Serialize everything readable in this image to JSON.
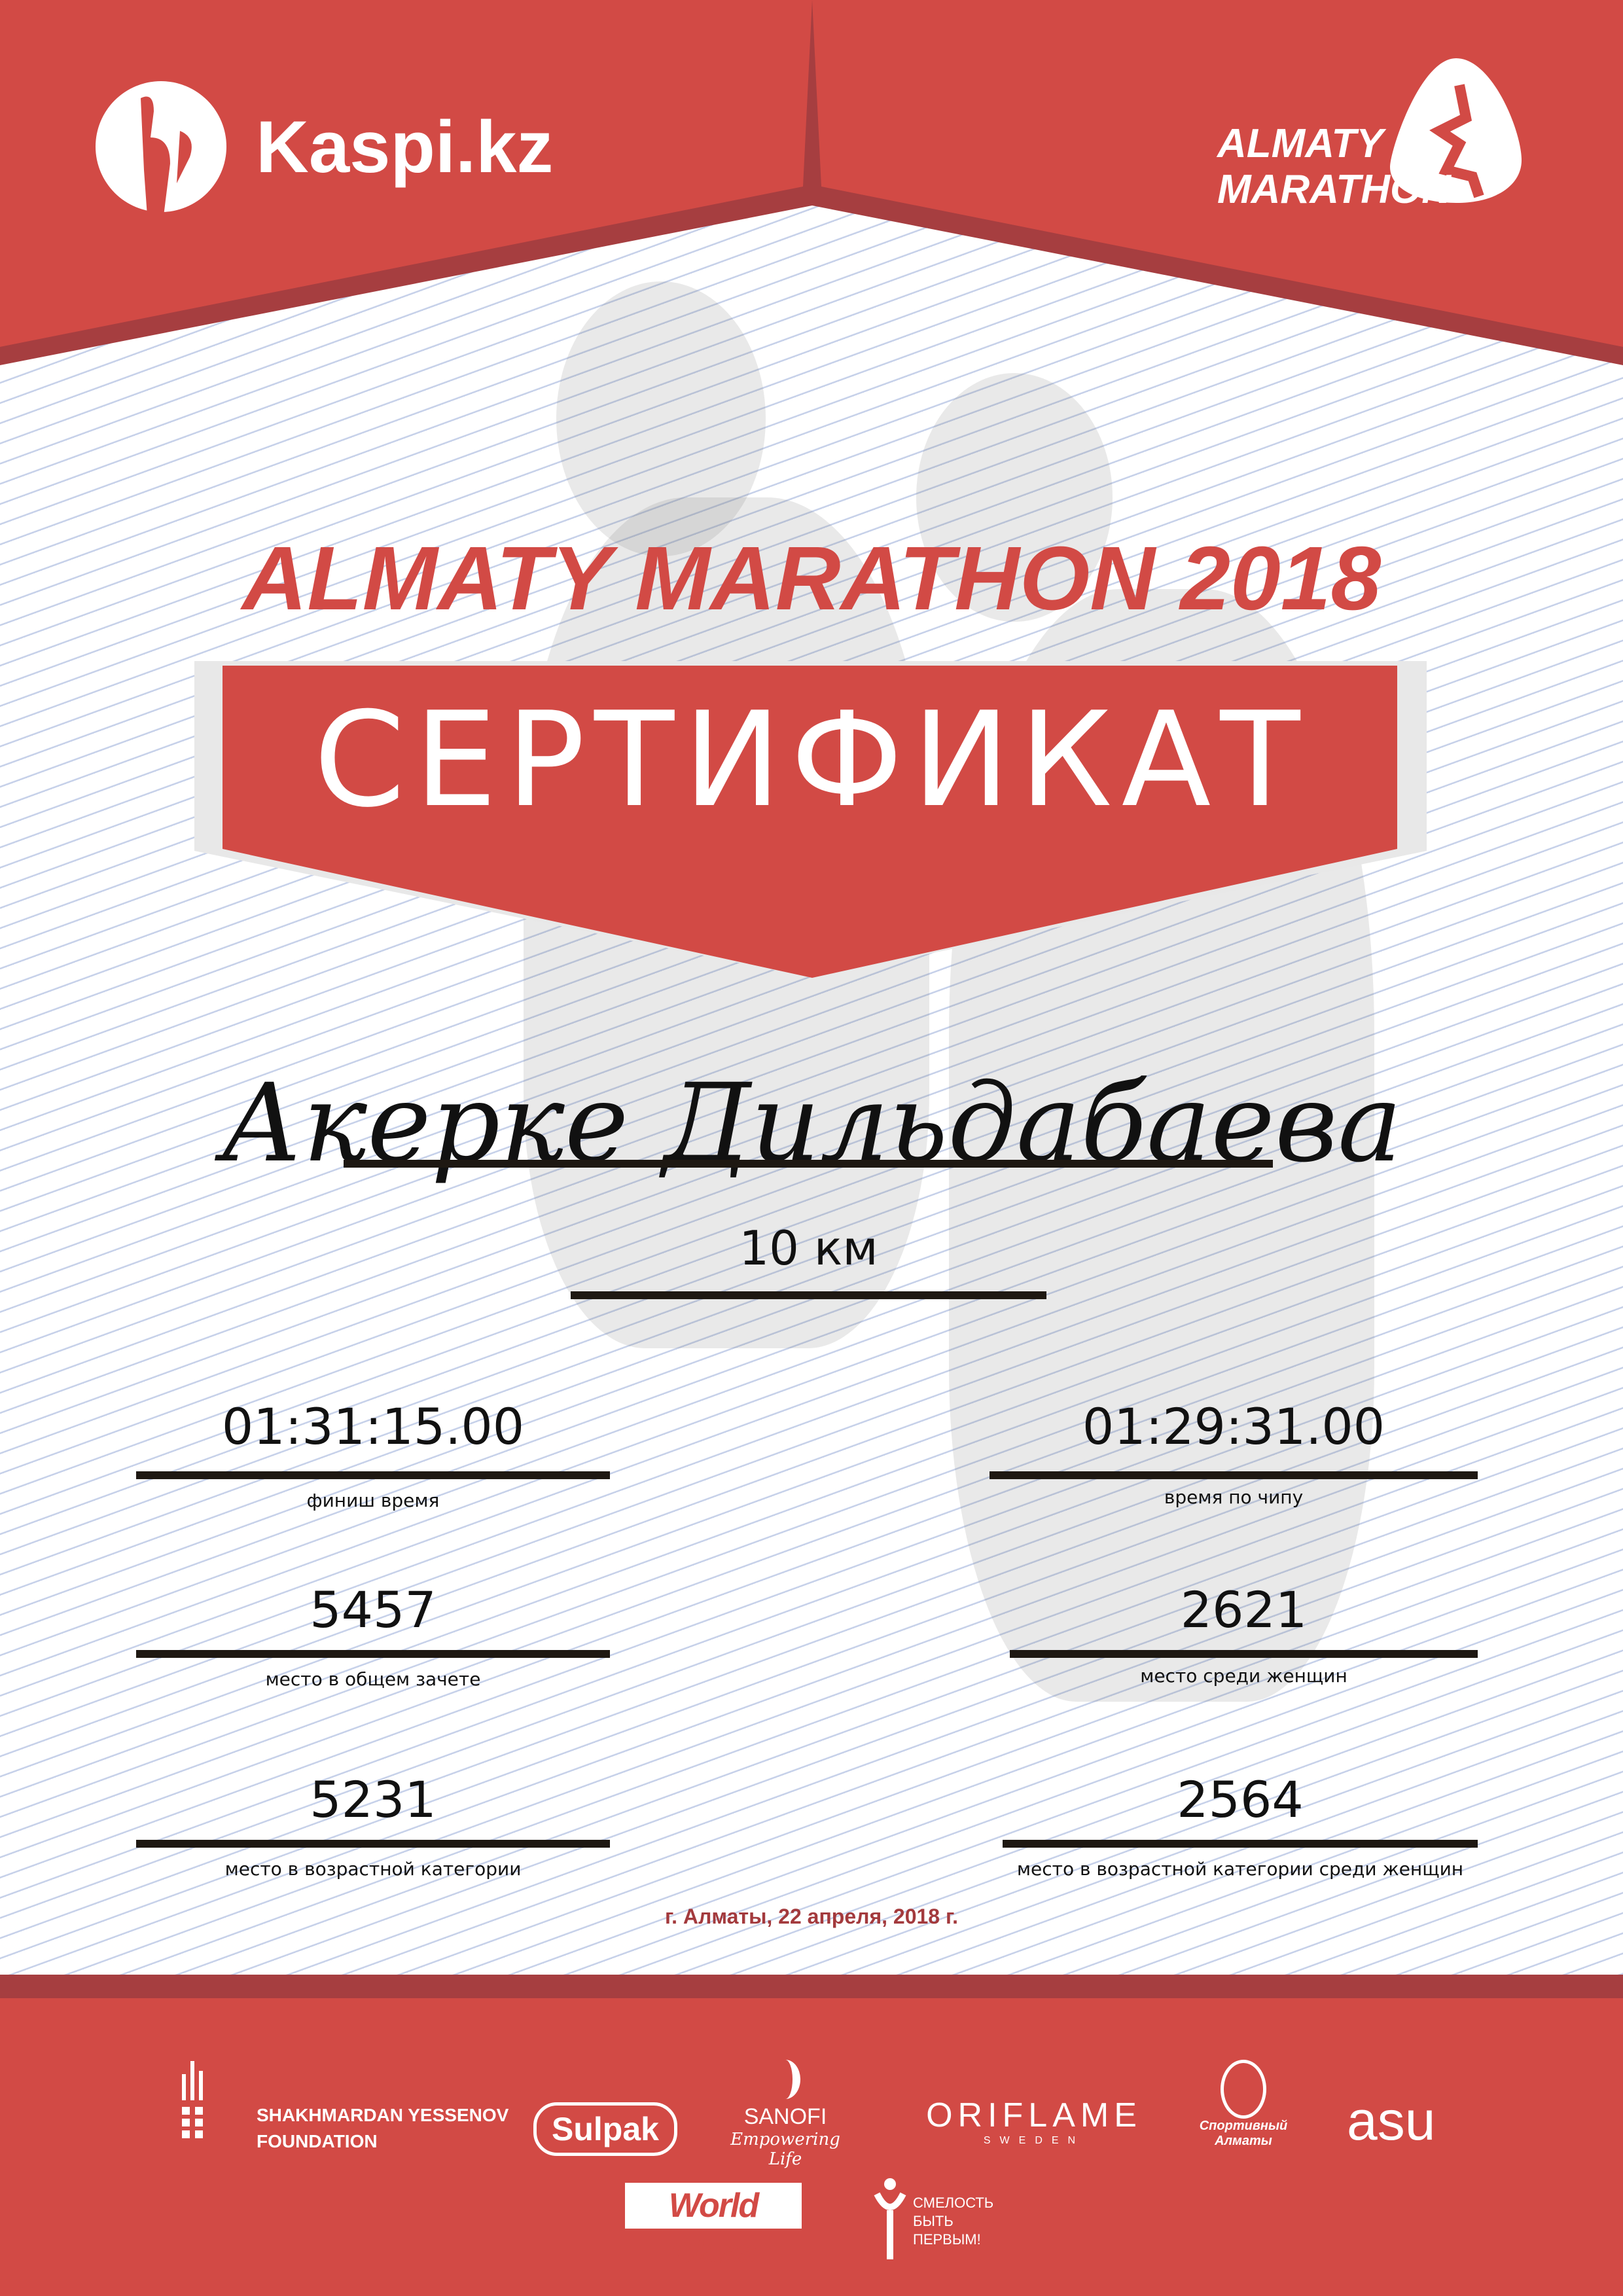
{
  "header": {
    "sponsor_logo": "Kaspi.kz",
    "event_logo_line1": "ALMATY",
    "event_logo_line2": "MARATHON"
  },
  "title": "ALMATY MARATHON 2018",
  "banner": "СЕРТИФИКАТ",
  "participant_name": "Акерке Дильдабаева",
  "distance": "10 км",
  "results": {
    "finish_time": {
      "value": "01:31:15.00",
      "label": "финиш время"
    },
    "chip_time": {
      "value": "01:29:31.00",
      "label": "время по чипу"
    },
    "overall_place": {
      "value": "5457",
      "label": "место в общем зачете"
    },
    "women_place": {
      "value": "2621",
      "label": "место среди женщин"
    },
    "age_place": {
      "value": "5231",
      "label": "место в возрастной категории"
    },
    "age_women_place": {
      "value": "2564",
      "label": "место в возрастной категории среди женщин"
    }
  },
  "date": "г. Алматы, 22 апреля, 2018 г.",
  "partners": {
    "yessenov_1": "SHAKHMARDAN YESSENOV",
    "yessenov_2": "FOUNDATION",
    "sulpak": "Sulpak",
    "sanofi": "SANOFI",
    "sanofi_tag": "Empowering Life",
    "oriflame": "ORIFLAME",
    "oriflame_sub": "SWEDEN",
    "sport_almaty": "Спортивный Алматы",
    "asu": "asu",
    "worldclass": "World Class",
    "fund_1": "СМЕЛОСТЬ",
    "fund_2": "БЫТЬ",
    "fund_3": "ПЕРВЫМ!"
  },
  "colors": {
    "primary_red": "#d24a45",
    "dark_red": "#a63e40",
    "date_red": "#a33a3d"
  }
}
